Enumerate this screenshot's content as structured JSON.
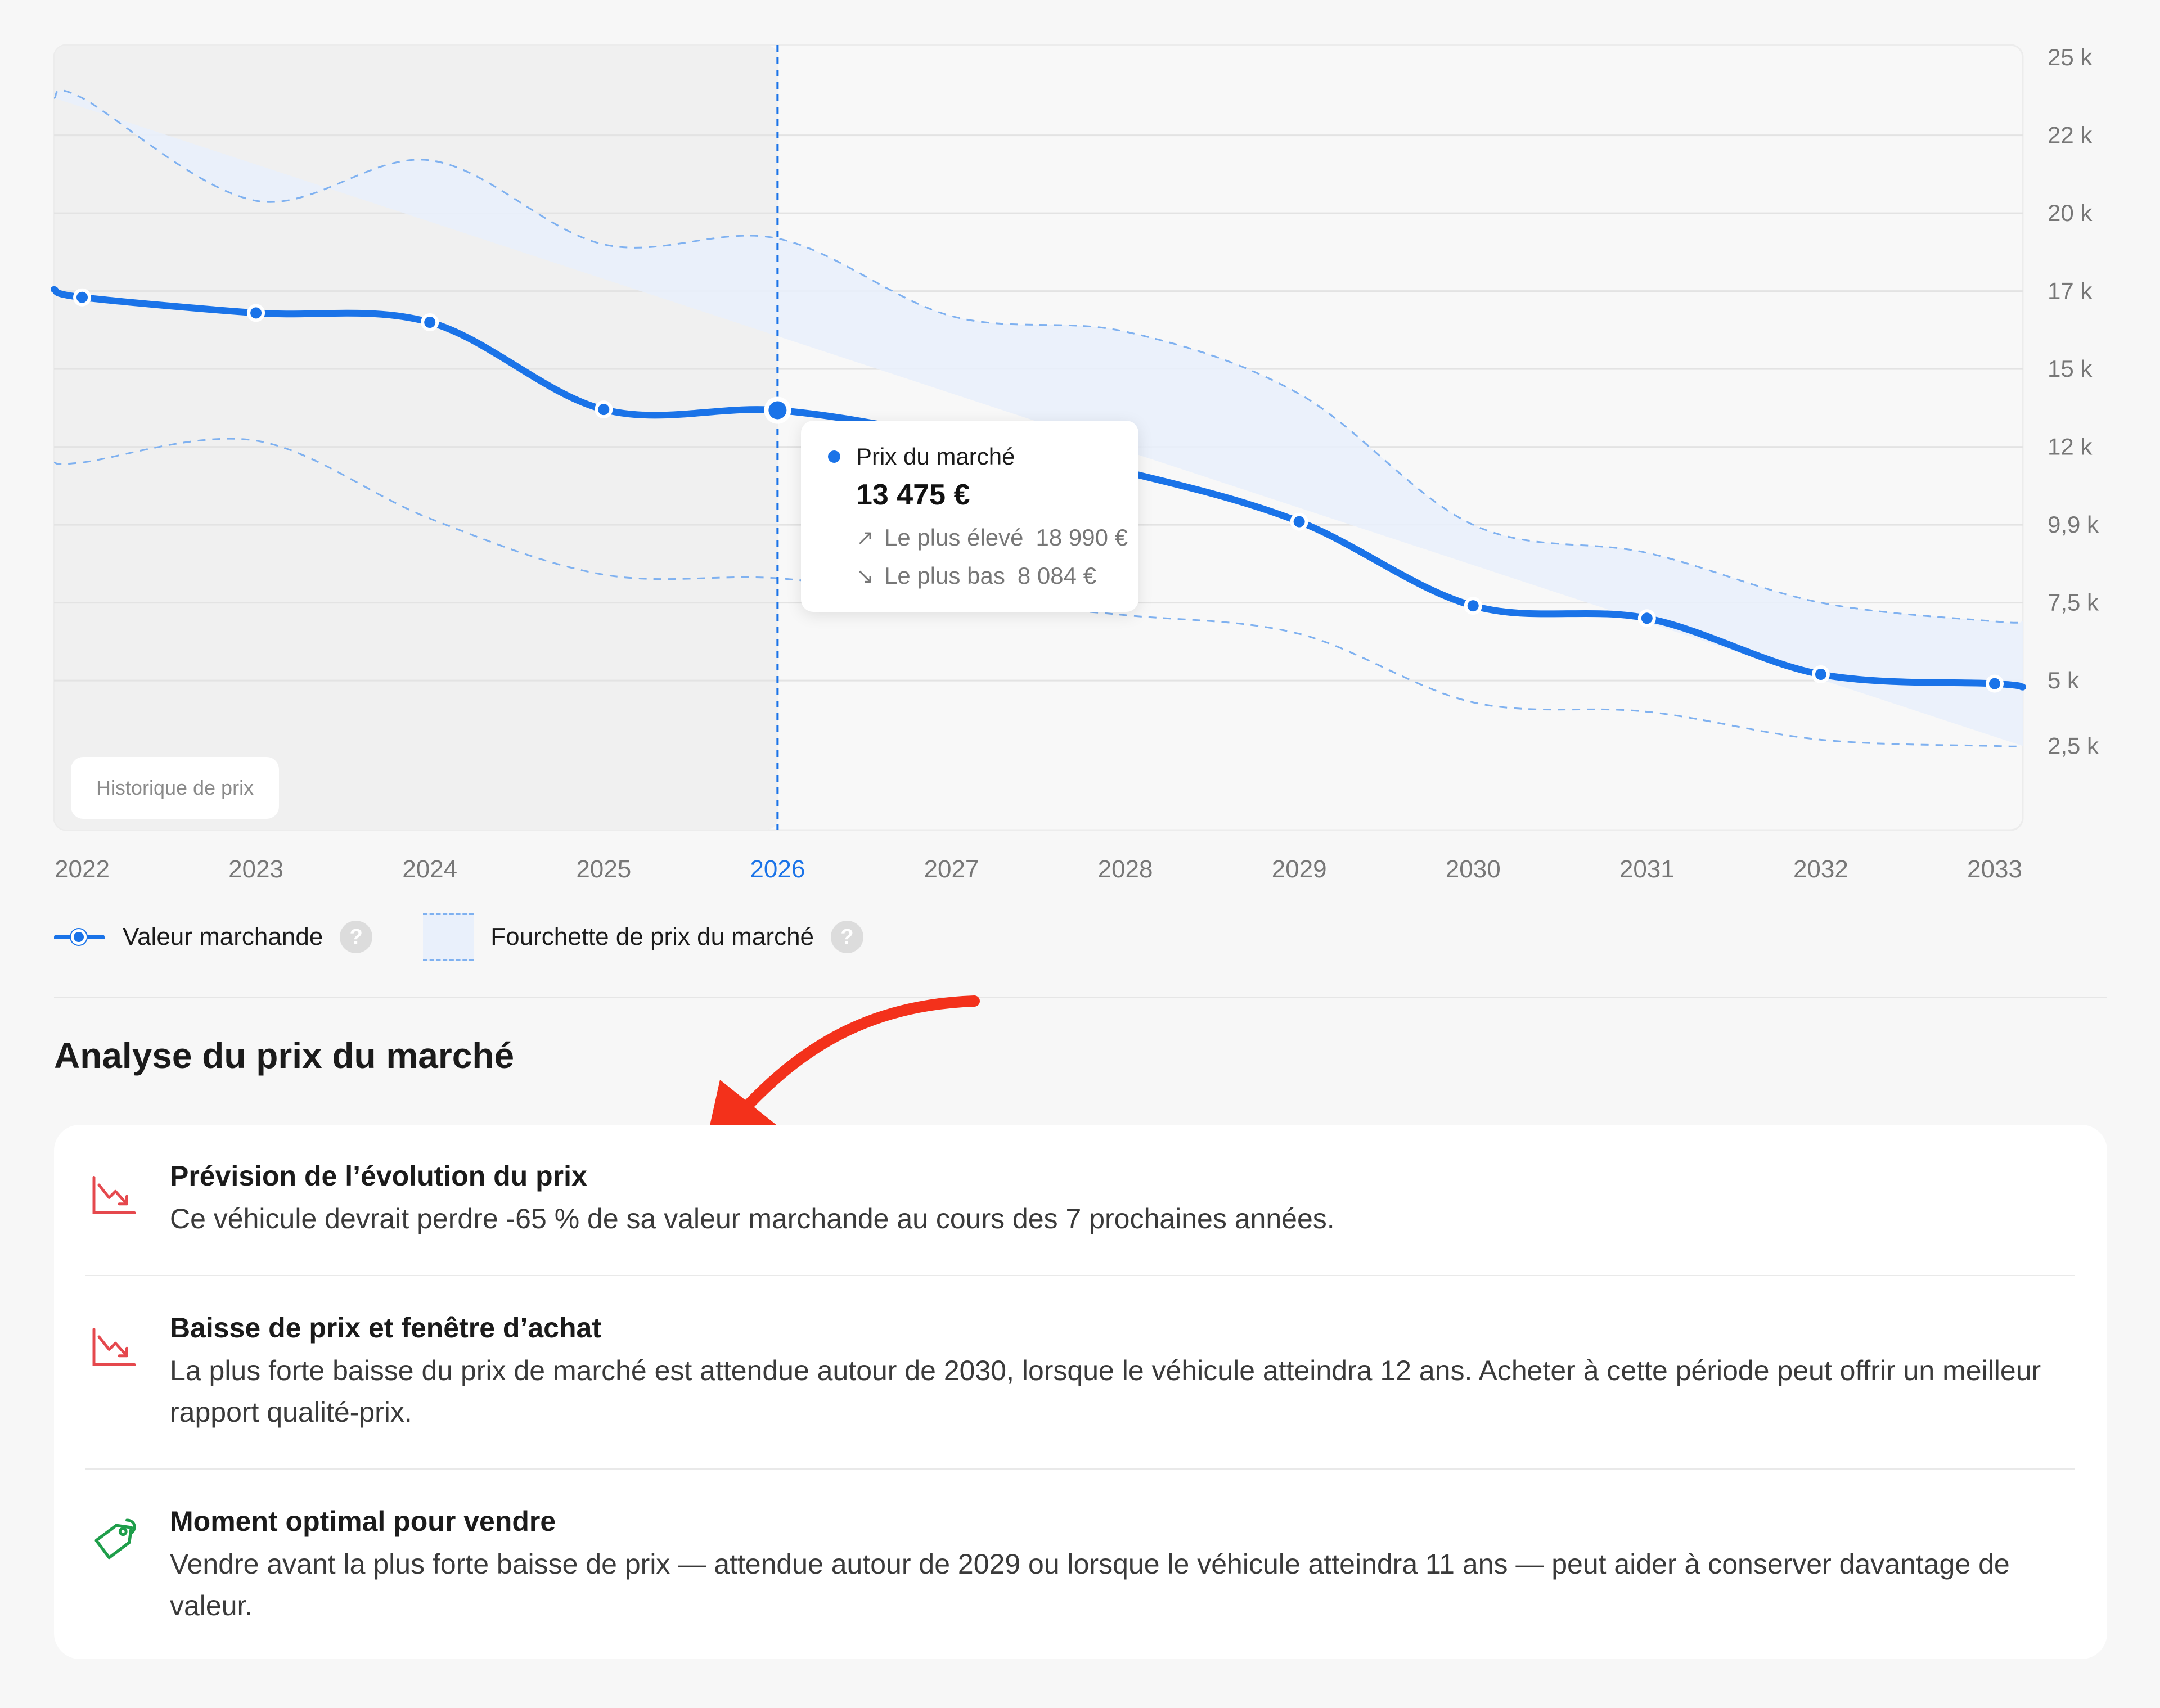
{
  "chart_data": {
    "type": "line",
    "x": [
      "2022",
      "2023",
      "2024",
      "2025",
      "2026",
      "2027",
      "2028",
      "2029",
      "2030",
      "2031",
      "2032",
      "2033"
    ],
    "highlight_x": "2026",
    "series": [
      {
        "name": "Valeur marchande",
        "values": [
          17100,
          16600,
          16300,
          13500,
          13475,
          12600,
          11500,
          9900,
          7200,
          6800,
          5000,
          4700
        ]
      },
      {
        "name": "Fourchette de prix du marché",
        "upper": [
          23500,
          20200,
          21500,
          18800,
          18990,
          16500,
          16000,
          14000,
          9800,
          8900,
          7300,
          6700
        ],
        "lower": [
          11800,
          12500,
          10000,
          8200,
          8084,
          7400,
          6900,
          6300,
          4100,
          3800,
          2900,
          2700
        ]
      }
    ],
    "y_ticks": [
      "25 k",
      "22 k",
      "20 k",
      "17 k",
      "15 k",
      "12 k",
      "9,9 k",
      "7,5 k",
      "5 k",
      "2,5 k"
    ],
    "y_tick_values": [
      24800,
      22300,
      19800,
      17300,
      14800,
      12300,
      9800,
      7300,
      4800,
      2700
    ],
    "ylim": [
      0,
      25200
    ],
    "grid": true,
    "history_until": "2026",
    "colors": {
      "line": "#1a73e8",
      "band": "#e9f0fb",
      "band_edge": "#7fb1f0",
      "history_bg": "#f0f0f0",
      "plot_bg": "#f8f8f8"
    }
  },
  "tooltip": {
    "title": "Prix du marché",
    "value": "13 475 €",
    "high_label": "Le plus élevé",
    "high_value": "18 990 €",
    "low_label": "Le plus bas",
    "low_value": "8 084 €"
  },
  "history_label": "Historique de prix",
  "legend": {
    "market_value": "Valeur marchande",
    "price_range": "Fourchette de prix du marché",
    "help": "?"
  },
  "analysis": {
    "title": "Analyse du prix du marché",
    "items": [
      {
        "icon": "trend-down-icon",
        "title": "Prévision de l’évolution du prix",
        "text": "Ce véhicule devrait perdre -65 % de sa valeur marchande au cours des 7 prochaines années."
      },
      {
        "icon": "trend-down-icon",
        "title": "Baisse de prix et fenêtre d’achat",
        "text": "La plus forte baisse du prix de marché est attendue autour de 2030, lorsque le véhicule atteindra 12 ans. Acheter à cette période peut offrir un meilleur rapport qualité-prix."
      },
      {
        "icon": "price-tag-icon",
        "title": "Moment optimal pour vendre",
        "text": "Vendre avant la plus forte baisse de prix — attendue autour de 2029 ou lorsque le véhicule atteindra 11 ans — peut aider à conserver davantage de valeur."
      }
    ]
  },
  "colors": {
    "accent": "#1a73e8",
    "danger": "#e5484d",
    "success": "#1e9e4a",
    "arrow": "#f3311b"
  }
}
